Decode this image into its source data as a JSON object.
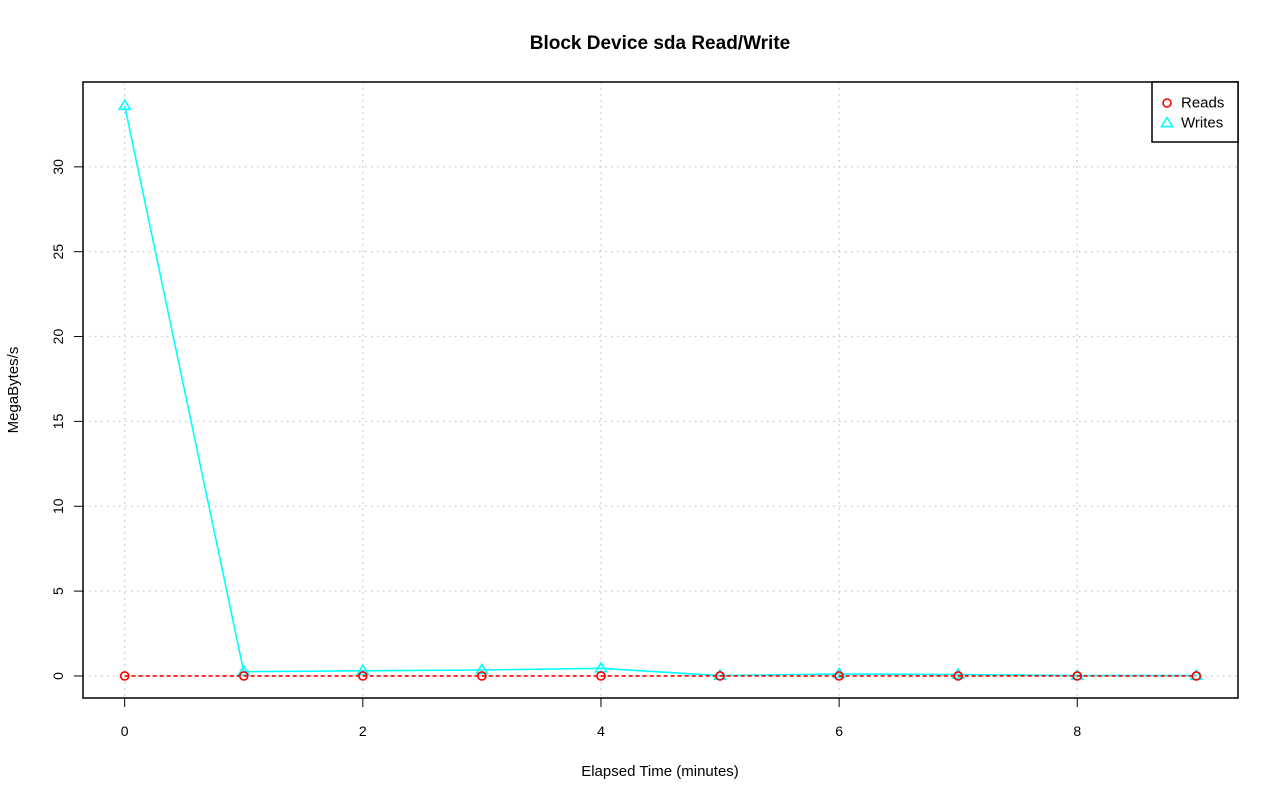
{
  "chart_data": {
    "type": "line",
    "title": "Block Device sda Read/Write",
    "xlabel": "Elapsed Time (minutes)",
    "ylabel": "MegaBytes/s",
    "xlim": [
      -0.35,
      9.35
    ],
    "ylim": [
      -1.3,
      35.0
    ],
    "x_ticks": [
      0,
      2,
      4,
      6,
      8
    ],
    "y_ticks": [
      0,
      5,
      10,
      15,
      20,
      25,
      30
    ],
    "x_tick_labels": [
      "0",
      "2",
      "4",
      "6",
      "8"
    ],
    "y_tick_labels": [
      "0",
      "5",
      "10",
      "15",
      "20",
      "25",
      "30"
    ],
    "grid": true,
    "legend_position": "top-right",
    "series": [
      {
        "name": "Reads",
        "color": "#ff0000",
        "marker": "circle",
        "line_style": "dashed",
        "x": [
          0,
          1,
          2,
          3,
          4,
          5,
          6,
          7,
          8,
          9
        ],
        "values": [
          0,
          0,
          0,
          0,
          0,
          0,
          0,
          0,
          0,
          0
        ]
      },
      {
        "name": "Writes",
        "color": "#00ffff",
        "marker": "triangle",
        "line_style": "solid",
        "x": [
          0,
          1,
          2,
          3,
          4,
          5,
          6,
          7,
          8,
          9
        ],
        "values": [
          33.6,
          0.25,
          0.3,
          0.35,
          0.45,
          0.02,
          0.12,
          0.08,
          0.02,
          0.02
        ]
      }
    ]
  }
}
